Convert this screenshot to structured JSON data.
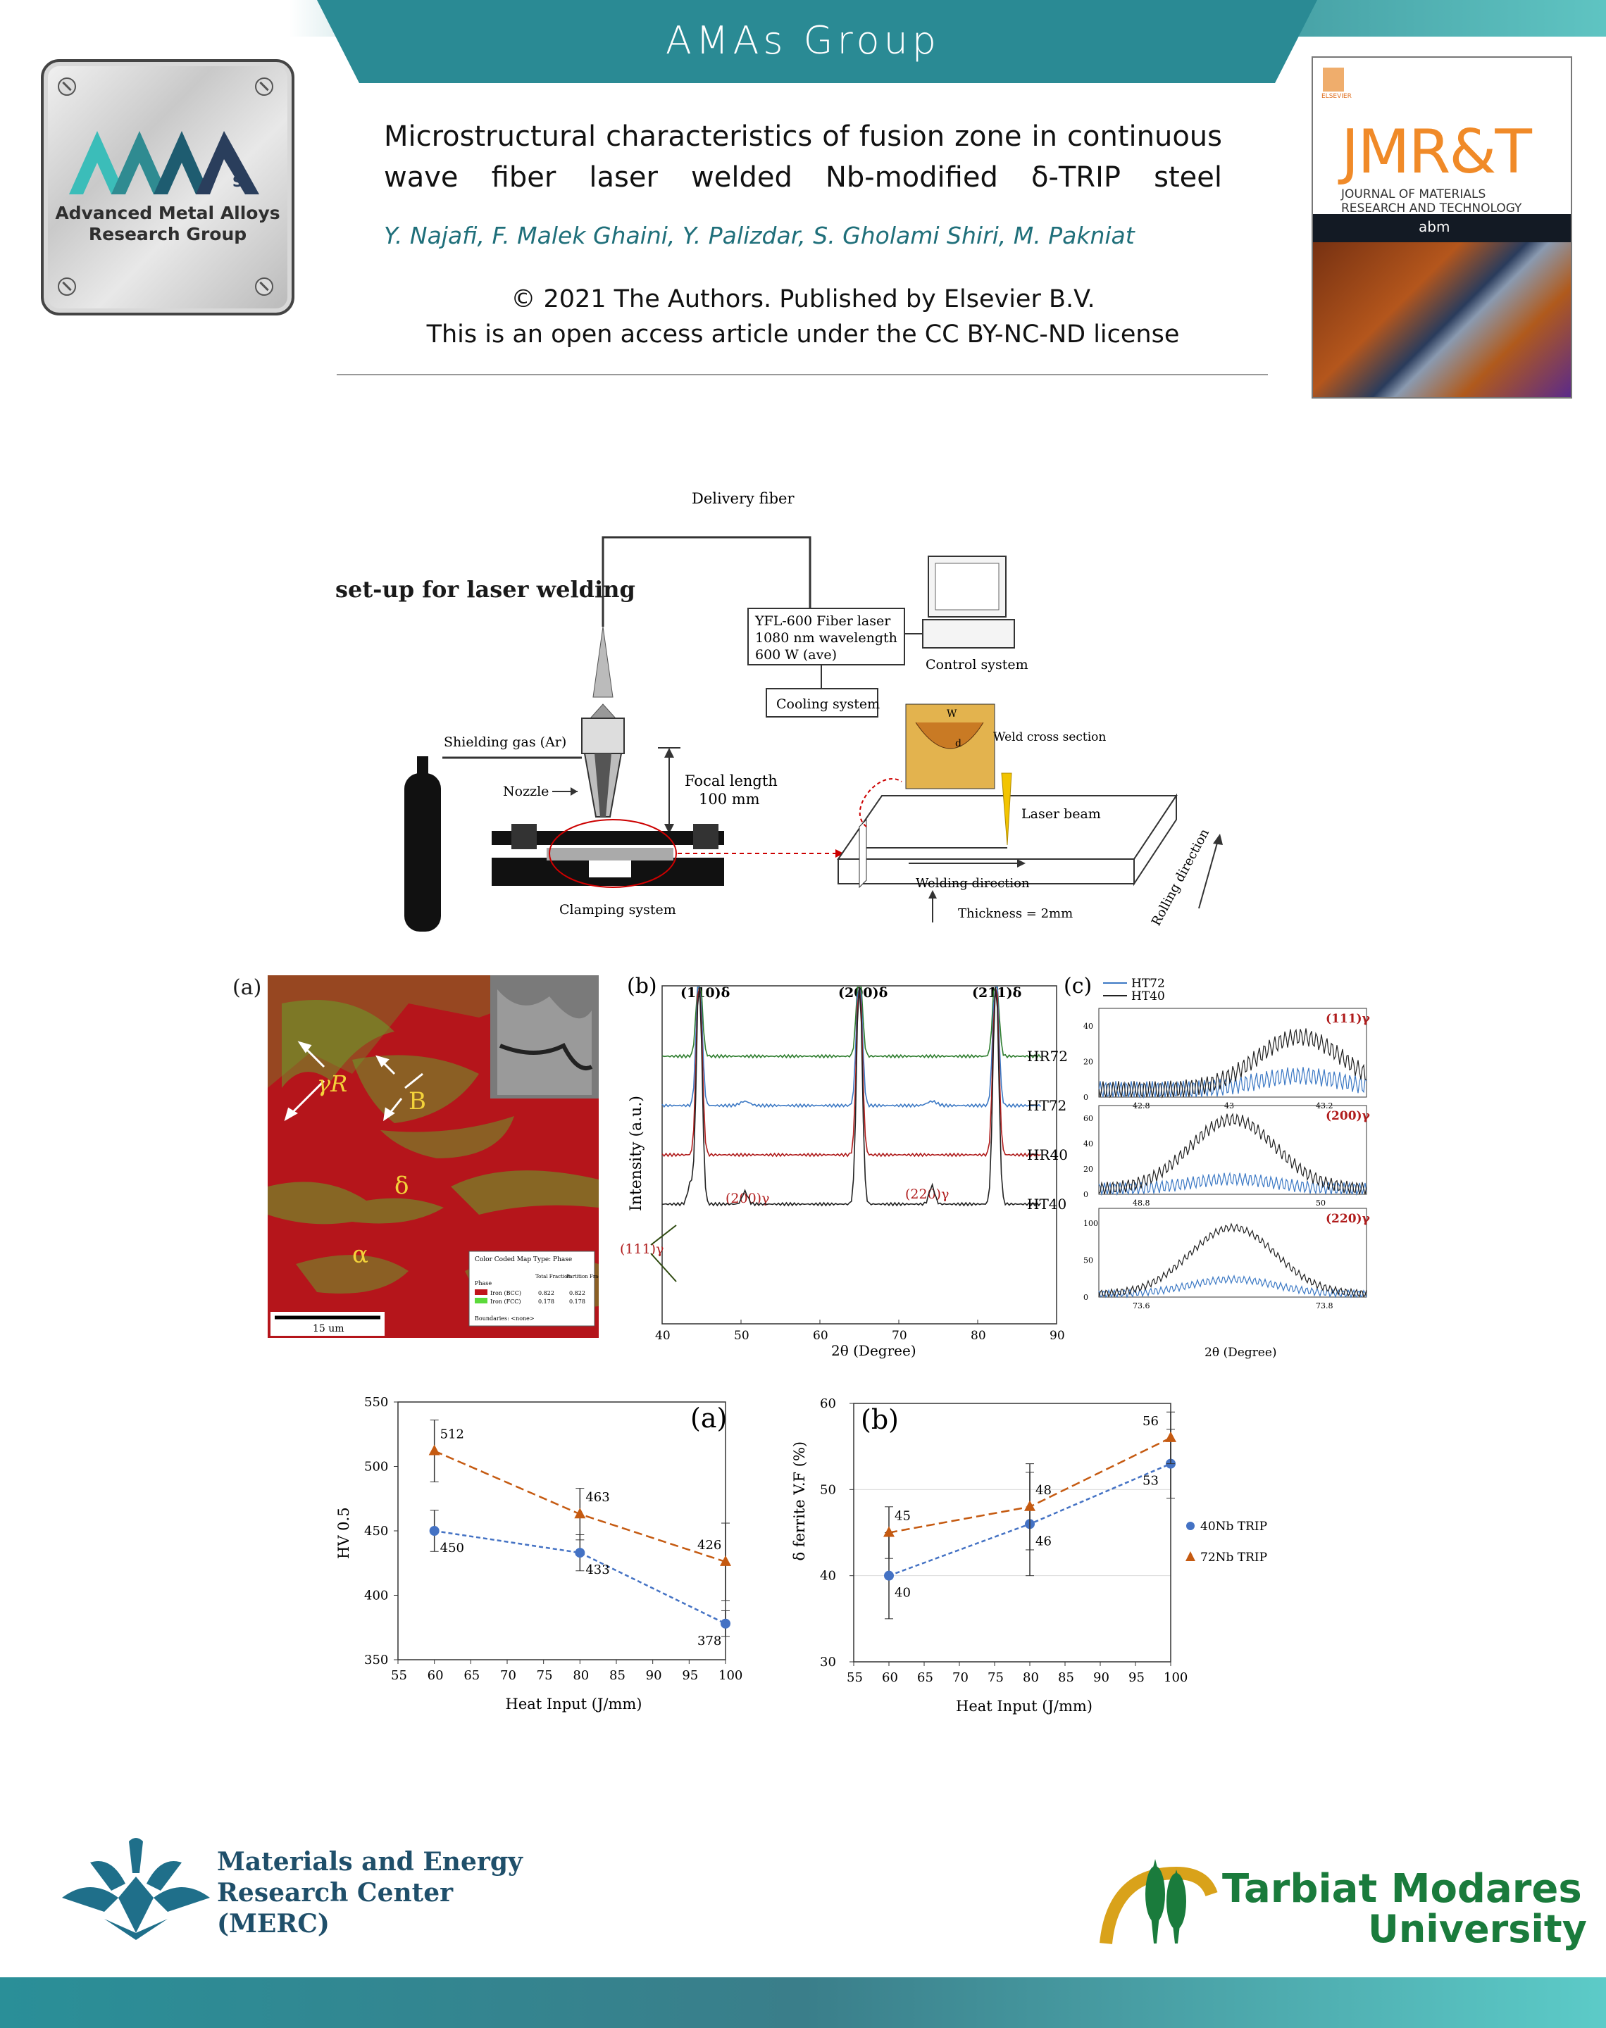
{
  "header": {
    "group_title": "AMAs Group",
    "logo_subtitle_line1": "Advanced Metal Alloys",
    "logo_subtitle_line2": "Research Group",
    "logo_letter": "S"
  },
  "paper": {
    "title": "Microstructural characteristics of fusion zone in continuous wave fiber laser welded Nb-modified δ-TRIP steel",
    "authors": "Y. Najafi, F. Malek Ghaini, Y. Palizdar, S. Gholami Shiri, M. Pakniat",
    "copyright_line1": "© 2021 The Authors. Published by Elsevier B.V.",
    "copyright_line2": "This is an open access article under the CC BY-NC-ND license"
  },
  "journal_cover": {
    "publisher": "ELSEVIER",
    "name": "JMR&T",
    "subtitle_line1": "JOURNAL OF MATERIALS",
    "subtitle_line2": "RESEARCH AND TECHNOLOGY",
    "society": "abm"
  },
  "setup": {
    "heading": "set-up for laser welding",
    "delivery_fiber": "Delivery fiber",
    "laser_line1": "YFL-600 Fiber laser",
    "laser_line2": "1080 nm wavelength",
    "laser_line3": "600 W (ave)",
    "control_system": "Control system",
    "cooling_system": "Cooling system",
    "shielding_gas": "Shielding gas (Ar)",
    "nozzle": "Nozzle",
    "focal_line1": "Focal length",
    "focal_line2": "100 mm",
    "weld_cross_section": "Weld cross section",
    "laser_beam": "Laser beam",
    "welding_direction": "Welding direction",
    "rolling_direction": "Rolling direction",
    "thickness": "Thickness = 2mm",
    "clamping_system": "Clamping system",
    "cross_w": "W",
    "cross_d": "d"
  },
  "micrograph": {
    "panel_label": "(a)",
    "label_gamma_r": "γR",
    "label_b": "B",
    "label_delta": "δ",
    "label_alpha": "α",
    "scale_bar": "15 um",
    "legend_title": "Color Coded Map Type: Phase",
    "legend_col_phase": "Phase",
    "legend_col_total": "Total Fraction",
    "legend_col_partition": "Partition Fraction",
    "legend_row1": "Iron (BCC)",
    "legend_row1_total": "0.822",
    "legend_row1_part": "0.822",
    "legend_row2": "Iron (FCC)",
    "legend_row2_total": "0.178",
    "legend_row2_part": "0.178",
    "legend_boundaries": "Boundaries: <none>",
    "colors": {
      "bcc": "#c0141a",
      "fcc": "#5bd93a"
    }
  },
  "xrd": {
    "panel_label": "(b)",
    "peak_110": "(110)δ",
    "peak_200": "(200)δ",
    "peak_211": "(211)δ",
    "peak_111g": "(111)γ",
    "peak_200g": "(200)γ",
    "peak_220g": "(220)γ",
    "ylabel": "Intensity (a.u.)",
    "xlabel": "2θ (Degree)",
    "series": [
      "HR72",
      "HT72",
      "HR40",
      "HT40"
    ],
    "x_ticks": [
      "40",
      "50",
      "60",
      "70",
      "80",
      "90"
    ],
    "colors": {
      "HR72": "#2e7d2e",
      "HT72": "#3b78c4",
      "HR40": "#b01c1c",
      "HT40": "#222222"
    }
  },
  "xrd_zoom": {
    "panel_label": "(c)",
    "legend": [
      "HT72",
      "HT40"
    ],
    "p1_label": "(111)γ",
    "p1_yticks": [
      "0",
      "20",
      "40"
    ],
    "p1_xticks": [
      "42.8",
      "43",
      "43.2"
    ],
    "p2_label": "(200)γ",
    "p2_yticks": [
      "0",
      "20",
      "40",
      "60"
    ],
    "p2_xticks": [
      "48.8",
      "50"
    ],
    "p3_label": "(220)γ",
    "p3_yticks": [
      "0",
      "50",
      "100"
    ],
    "p3_xticks": [
      "73.6",
      "73.8"
    ],
    "xlabel": "2θ (Degree)"
  },
  "chart_data": [
    {
      "type": "line",
      "panel_label": "(a)",
      "xlabel": "Heat Input (J/mm)",
      "ylabel": "HV 0.5",
      "xlim": [
        55,
        100
      ],
      "ylim": [
        350,
        550
      ],
      "x_ticks": [
        55,
        60,
        65,
        70,
        75,
        80,
        85,
        90,
        95,
        100
      ],
      "y_ticks": [
        350,
        400,
        450,
        500,
        550
      ],
      "x": [
        60,
        80,
        100
      ],
      "series": [
        {
          "values": [
            450,
            433,
            378
          ],
          "labels": [
            "450",
            "433",
            "378"
          ],
          "errors": [
            16,
            14,
            10
          ],
          "color": "#4472c4",
          "marker": "circle"
        },
        {
          "values": [
            512,
            463,
            426
          ],
          "labels": [
            "512",
            "463",
            "426"
          ],
          "errors": [
            24,
            20,
            30
          ],
          "color": "#c55a11",
          "marker": "triangle"
        }
      ]
    },
    {
      "type": "line",
      "panel_label": "(b)",
      "xlabel": "Heat Input (J/mm)",
      "ylabel": "δ ferrite V.F (%)",
      "xlim": [
        55,
        100
      ],
      "ylim": [
        30,
        60
      ],
      "x_ticks": [
        55,
        60,
        65,
        70,
        75,
        80,
        85,
        90,
        95,
        100
      ],
      "y_ticks": [
        30,
        40,
        50,
        60
      ],
      "grid": true,
      "x": [
        60,
        80,
        100
      ],
      "series": [
        {
          "name": "40Nb TRIP",
          "values": [
            40,
            46,
            53
          ],
          "labels": [
            "40",
            "46",
            "53"
          ],
          "errors": [
            5,
            6,
            4
          ],
          "color": "#4472c4",
          "marker": "circle"
        },
        {
          "name": "72Nb TRIP",
          "values": [
            45,
            48,
            56
          ],
          "labels": [
            "45",
            "48",
            "56"
          ],
          "errors": [
            3,
            5,
            3
          ],
          "color": "#c55a11",
          "marker": "triangle"
        }
      ],
      "legend_position": "right"
    }
  ],
  "footer": {
    "merc_line1": "Materials and Energy",
    "merc_line2": "Research Center",
    "merc_line3": "(MERC)",
    "tmu_line1": "Tarbiat Modares",
    "tmu_line2": "University"
  }
}
